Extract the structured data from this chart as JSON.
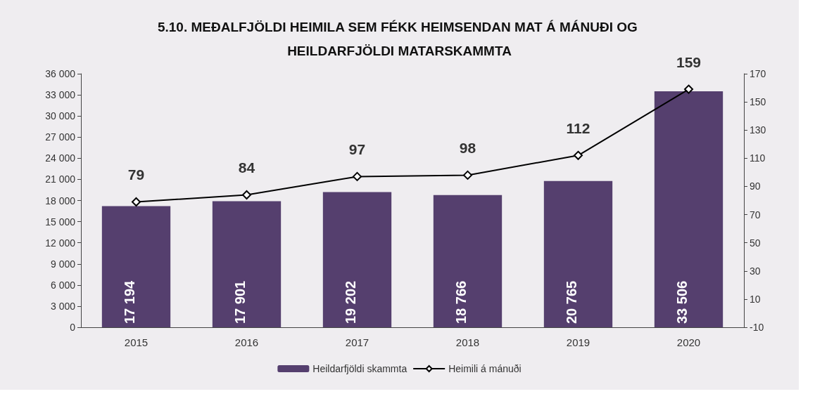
{
  "chart_data": {
    "type": "bar",
    "title": "5.10. MEÐALFJÖLDI HEIMILA SEM FÉKK HEIMSENDAN MAT Á MÁNUÐI OG HEILDARFJÖLDI MATARSKAMMTA",
    "categories": [
      "2015",
      "2016",
      "2017",
      "2018",
      "2019",
      "2020"
    ],
    "series": [
      {
        "name": "Heildarfjöldi skammta",
        "color": "#553f6e",
        "values": [
          17194,
          17901,
          19202,
          18766,
          20765,
          33506
        ],
        "value_labels": [
          "17 194",
          "17 901",
          "19 202",
          "18 766",
          "20 765",
          "33 506"
        ]
      },
      {
        "name": "Heimili á mánuði",
        "type": "line",
        "axis": "y2",
        "color": "#000000",
        "values": [
          79,
          84,
          97,
          98,
          112,
          159
        ],
        "value_labels": [
          "79",
          "84",
          "97",
          "98",
          "112",
          "159"
        ]
      }
    ],
    "ylim": [
      0,
      36000
    ],
    "yticks": [
      0,
      {
        "value": 3000,
        "label": "3 000"
      },
      {
        "value": 6000,
        "label": "6 000"
      },
      {
        "value": 9000,
        "label": "9 000"
      },
      {
        "value": 12000,
        "label": "12 000"
      },
      {
        "value": 15000,
        "label": "15 000"
      },
      {
        "value": 18000,
        "label": "18 000"
      },
      {
        "value": 21000,
        "label": "21 000"
      },
      {
        "value": 24000,
        "label": "24 000"
      },
      {
        "value": 27000,
        "label": "27 000"
      },
      {
        "value": 30000,
        "label": "30 000"
      },
      {
        "value": 33000,
        "label": "33 000"
      },
      {
        "value": 36000,
        "label": "36 000"
      }
    ],
    "y2lim": [
      -10,
      170
    ],
    "y2ticks": [
      -10,
      10,
      30,
      50,
      70,
      90,
      110,
      130,
      150,
      170
    ],
    "legend": "bottom",
    "marker": "diamond",
    "grid": false
  }
}
